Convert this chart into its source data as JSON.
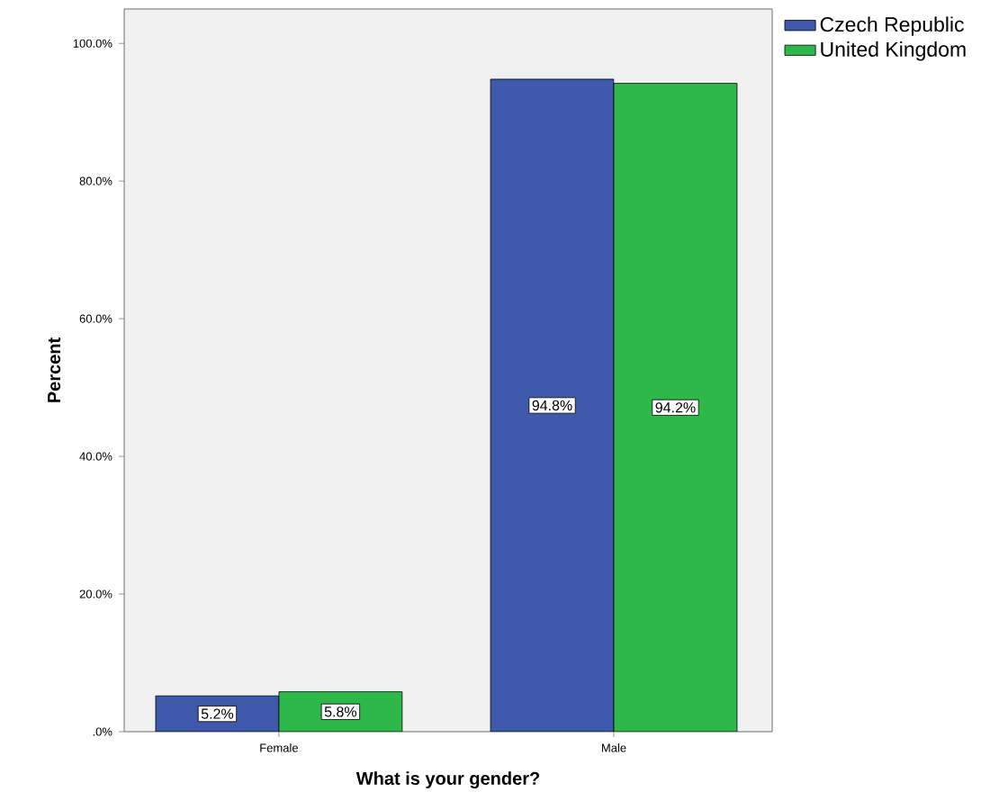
{
  "chart_data": {
    "type": "bar",
    "xlabel": "What is your gender?",
    "ylabel": "Percent",
    "categories": [
      "Female",
      "Male"
    ],
    "series": [
      {
        "name": "Czech Republic",
        "color": "#3e58ac",
        "values": [
          5.2,
          94.8
        ],
        "value_labels": [
          "5.2%",
          "94.8%"
        ]
      },
      {
        "name": "United Kingdom",
        "color": "#2eb84a",
        "values": [
          5.8,
          94.2
        ],
        "value_labels": [
          "5.8%",
          "94.2%"
        ]
      }
    ],
    "ylim": [
      0,
      105
    ],
    "yticks": [
      {
        "value": 0,
        "label": ".0%"
      },
      {
        "value": 20,
        "label": "20.0%"
      },
      {
        "value": 40,
        "label": "40.0%"
      },
      {
        "value": 60,
        "label": "60.0%"
      },
      {
        "value": 80,
        "label": "80.0%"
      },
      {
        "value": 100,
        "label": "100.0%"
      }
    ],
    "legend": "top right",
    "grid": false
  }
}
